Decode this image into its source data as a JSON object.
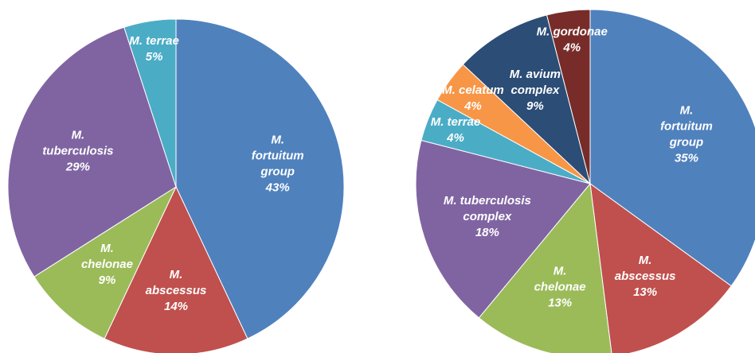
{
  "chart_data": [
    {
      "type": "pie",
      "categories": [
        "M.\nfortuitum\ngroup",
        "M.\nabscessus",
        "M.\nchelonae",
        "M.\ntuberculosis",
        "M. terrae"
      ],
      "values": [
        43,
        14,
        9,
        29,
        5
      ],
      "value_labels": [
        "43%",
        "14%",
        "9%",
        "29%",
        "5%"
      ],
      "colors": [
        "#4f81bd",
        "#c0504d",
        "#9bbb59",
        "#8064a2",
        "#4bacc6"
      ]
    },
    {
      "type": "pie",
      "categories": [
        "M.\nfortuitum\ngroup",
        "M.\nabscessus",
        "M.\nchelonae",
        "M. tuberculosis\ncomplex",
        "M. terrae",
        "M. celatum",
        "M. avium\ncomplex",
        "M. gordonae"
      ],
      "values": [
        35,
        13,
        13,
        18,
        4,
        4,
        9,
        4
      ],
      "value_labels": [
        "35%",
        "13%",
        "13%",
        "18%",
        "4%",
        "4%",
        "9%",
        "4%"
      ],
      "colors": [
        "#4f81bd",
        "#c0504d",
        "#9bbb59",
        "#8064a2",
        "#4bacc6",
        "#f79646",
        "#2c4d75",
        "#772c2a"
      ]
    }
  ]
}
